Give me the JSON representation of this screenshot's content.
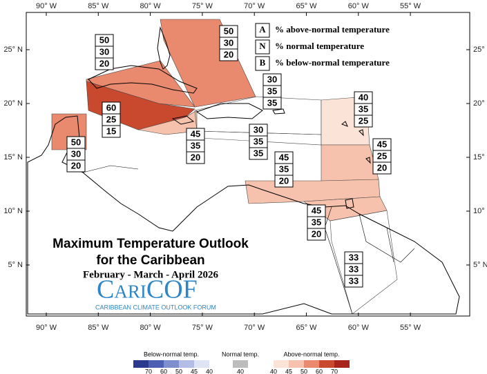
{
  "title": "Maximum Temperature Outlook",
  "title_line2": "for the Caribbean",
  "period": "February - March - April 2026",
  "logo": {
    "name": "CariCOF",
    "subtitle": "CARIBBEAN CLIMATE OUTLOOK FORUM"
  },
  "longitude_labels": [
    "90° W",
    "85° W",
    "80° W",
    "75° W",
    "70° W",
    "65° W",
    "60° W",
    "55° W"
  ],
  "latitude_labels": [
    "25° N",
    "20° N",
    "15° N",
    "10° N",
    "5° N"
  ],
  "key": [
    {
      "letter": "A",
      "text": "% above-normal temperature"
    },
    {
      "letter": "N",
      "text": "% normal temperature"
    },
    {
      "letter": "B",
      "text": "% below-normal temperature"
    }
  ],
  "regions": [
    {
      "values": [
        50,
        30,
        20
      ]
    },
    {
      "values": [
        50,
        30,
        20
      ]
    },
    {
      "values": [
        50,
        30,
        20
      ]
    },
    {
      "values": [
        60,
        25,
        15
      ]
    },
    {
      "values": [
        45,
        35,
        20
      ]
    },
    {
      "values": [
        30,
        35,
        35
      ]
    },
    {
      "values": [
        30,
        35,
        35
      ]
    },
    {
      "values": [
        40,
        35,
        25
      ]
    },
    {
      "values": [
        45,
        25,
        20
      ]
    },
    {
      "values": [
        45,
        35,
        20
      ]
    },
    {
      "values": [
        45,
        35,
        20
      ]
    },
    {
      "values": [
        33,
        33,
        33
      ]
    }
  ],
  "colorbar": {
    "below": {
      "label": "Below-normal temp.",
      "ticks": [
        70,
        60,
        50,
        45,
        40
      ],
      "colors": [
        "#2b3a8c",
        "#4c5fb0",
        "#7f8fce",
        "#b3bde6",
        "#dfe3f6"
      ]
    },
    "normal": {
      "label": "Normal temp.",
      "ticks": [
        40
      ],
      "colors": [
        "#bdbdbd"
      ]
    },
    "above": {
      "label": "Above-normal temp.",
      "ticks": [
        40,
        45,
        50,
        60,
        70
      ],
      "colors": [
        "#fbe3d7",
        "#f6c2ad",
        "#e98a6e",
        "#c9492f",
        "#a8231a"
      ]
    }
  }
}
